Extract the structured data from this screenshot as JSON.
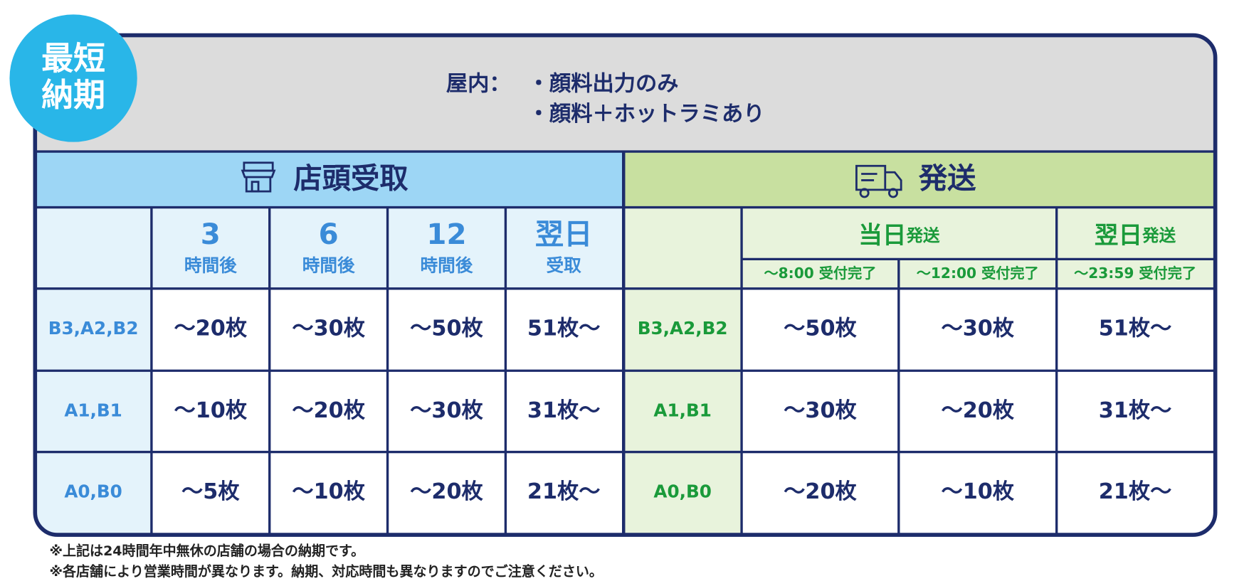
{
  "badge": {
    "lines": [
      "最短",
      "納期"
    ]
  },
  "header": {
    "label": "屋内：",
    "items": [
      "・顔料出力のみ",
      "・顔料＋ホットラミあり"
    ]
  },
  "store": {
    "title": "店頭受取",
    "columns": [
      {
        "big": "3",
        "small": "時間後"
      },
      {
        "big": "6",
        "small": "時間後"
      },
      {
        "big": "12",
        "small": "時間後"
      },
      {
        "big": "翌日",
        "small": "受取"
      }
    ],
    "rows": [
      {
        "size": "B3,A2,B2",
        "values": [
          "〜20枚",
          "〜30枚",
          "〜50枚",
          "51枚〜"
        ]
      },
      {
        "size": "A1,B1",
        "values": [
          "〜10枚",
          "〜20枚",
          "〜30枚",
          "31枚〜"
        ]
      },
      {
        "size": "A0,B0",
        "values": [
          "〜5枚",
          "〜10枚",
          "〜20枚",
          "21枚〜"
        ]
      }
    ]
  },
  "ship": {
    "title": "発送",
    "groups": [
      {
        "label": "当日",
        "suffix": "発送",
        "subs": [
          "〜8:00 受付完了",
          "〜12:00 受付完了"
        ]
      },
      {
        "label": "翌日",
        "suffix": "発送",
        "subs": [
          "〜23:59 受付完了"
        ]
      }
    ],
    "rows": [
      {
        "size": "B3,A2,B2",
        "values": [
          "〜50枚",
          "〜30枚",
          "51枚〜"
        ]
      },
      {
        "size": "A1,B1",
        "values": [
          "〜30枚",
          "〜20枚",
          "31枚〜"
        ]
      },
      {
        "size": "A0,B0",
        "values": [
          "〜20枚",
          "〜10枚",
          "21枚〜"
        ]
      }
    ]
  },
  "notes": [
    "※上記は24時間年中無休の店舗の場合の納期です。",
    "※各店舗により営業時間が異なります。納期、対応時間も異なりますのでご注意ください。"
  ]
}
